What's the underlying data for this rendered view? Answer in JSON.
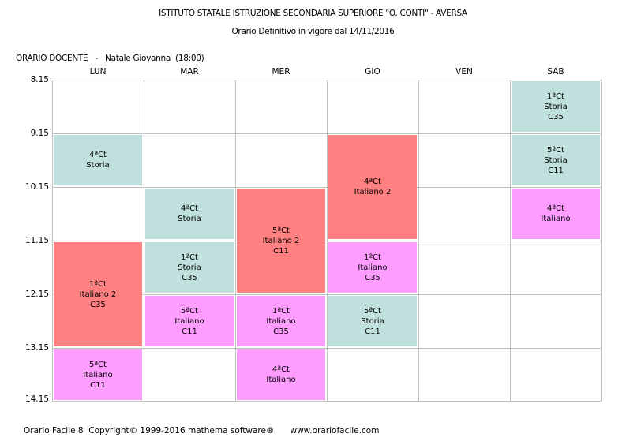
{
  "header": {
    "title": "ISTITUTO STATALE ISTRUZIONE SECONDARIA SUPERIORE \"O. CONTI\" - AVERSA",
    "subtitle": "Orario Definitivo in vigore dal 14/11/2016",
    "teacher_line": "ORARIO DOCENTE   -   Natale Giovanna  (18:00)"
  },
  "days": [
    "LUN",
    "MAR",
    "MER",
    "GIO",
    "VEN",
    "SAB"
  ],
  "times": [
    "8.15",
    "9.15",
    "10.15",
    "11.15",
    "12.15",
    "13.15",
    "14.15"
  ],
  "colors": {
    "Storia": "#c0e0de",
    "Italiano 2": "#ff8080",
    "Italiano": "#ff9cff",
    "grid": "#c0c0c0"
  },
  "lessons": [
    {
      "day": 0,
      "period": 1,
      "span": 1,
      "lines": [
        "4ªCt",
        "Storia"
      ],
      "type": "Storia"
    },
    {
      "day": 0,
      "period": 3,
      "span": 2,
      "lines": [
        "1ªCt",
        "Italiano 2",
        "C35"
      ],
      "type": "Italiano 2"
    },
    {
      "day": 0,
      "period": 5,
      "span": 1,
      "lines": [
        "5ªCt",
        "Italiano",
        "C11"
      ],
      "type": "Italiano"
    },
    {
      "day": 1,
      "period": 2,
      "span": 1,
      "lines": [
        "4ªCt",
        "Storia"
      ],
      "type": "Storia"
    },
    {
      "day": 1,
      "period": 3,
      "span": 1,
      "lines": [
        "1ªCt",
        "Storia",
        "C35"
      ],
      "type": "Storia"
    },
    {
      "day": 1,
      "period": 4,
      "span": 1,
      "lines": [
        "5ªCt",
        "Italiano",
        "C11"
      ],
      "type": "Italiano"
    },
    {
      "day": 2,
      "period": 2,
      "span": 2,
      "lines": [
        "5ªCt",
        "Italiano 2",
        "C11"
      ],
      "type": "Italiano 2"
    },
    {
      "day": 2,
      "period": 4,
      "span": 1,
      "lines": [
        "1ªCt",
        "Italiano",
        "C35"
      ],
      "type": "Italiano"
    },
    {
      "day": 2,
      "period": 5,
      "span": 1,
      "lines": [
        "4ªCt",
        "Italiano"
      ],
      "type": "Italiano"
    },
    {
      "day": 3,
      "period": 1,
      "span": 2,
      "lines": [
        "4ªCt",
        "Italiano 2"
      ],
      "type": "Italiano 2"
    },
    {
      "day": 3,
      "period": 3,
      "span": 1,
      "lines": [
        "1ªCt",
        "Italiano",
        "C35"
      ],
      "type": "Italiano"
    },
    {
      "day": 3,
      "period": 4,
      "span": 1,
      "lines": [
        "5ªCt",
        "Storia",
        "C11"
      ],
      "type": "Storia"
    },
    {
      "day": 5,
      "period": 0,
      "span": 1,
      "lines": [
        "1ªCt",
        "Storia",
        "C35"
      ],
      "type": "Storia"
    },
    {
      "day": 5,
      "period": 1,
      "span": 1,
      "lines": [
        "5ªCt",
        "Storia",
        "C11"
      ],
      "type": "Storia"
    },
    {
      "day": 5,
      "period": 2,
      "span": 1,
      "lines": [
        "4ªCt",
        "Italiano"
      ],
      "type": "Italiano"
    }
  ],
  "footer": "Orario Facile 8  Copyright© 1999-2016 mathema software®      www.orariofacile.com"
}
